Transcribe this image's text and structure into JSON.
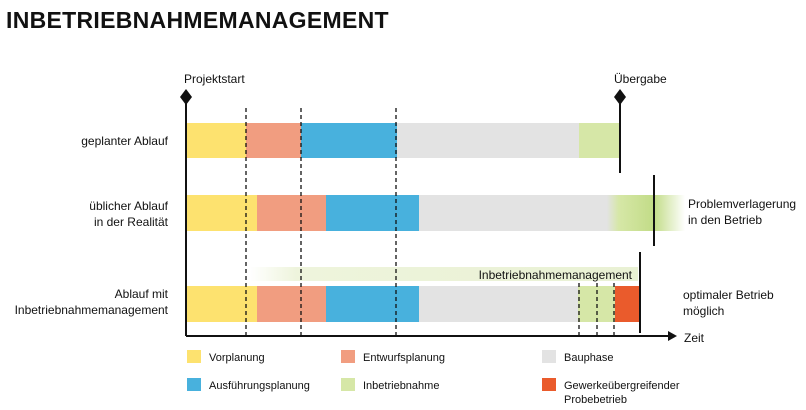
{
  "title": "INBETRIEBNAHMEMANAGEMENT",
  "milestones": {
    "start": "Projektstart",
    "end": "Übergabe"
  },
  "axis_label": "Zeit",
  "rows": [
    {
      "label_lines": [
        "geplanter Ablauf"
      ]
    },
    {
      "label_lines": [
        "üblicher Ablauf",
        "in der Realität"
      ],
      "outcome_lines": [
        "Problemverlagerung",
        "in den Betrieb"
      ]
    },
    {
      "label_lines": [
        "Ablauf mit",
        "Inbetriebnahmemanagement"
      ],
      "outcome_lines": [
        "optimaler Betrieb",
        "möglich"
      ],
      "band_label": "Inbetriebnahmemanagement"
    }
  ],
  "legend": [
    {
      "label_lines": [
        "Vorplanung"
      ],
      "color": "#fde26f"
    },
    {
      "label_lines": [
        "Entwurfsplanung"
      ],
      "color": "#f19d80"
    },
    {
      "label_lines": [
        "Bauphase"
      ],
      "color": "#e3e3e3"
    },
    {
      "label_lines": [
        "Ausführungsplanung"
      ],
      "color": "#48b1dd"
    },
    {
      "label_lines": [
        "Inbetriebnahme"
      ],
      "color": "#d6e7a7"
    },
    {
      "label_lines": [
        "Gewerkeübergreifender",
        "Probebetrieb"
      ],
      "color": "#ea5b2c"
    }
  ]
}
